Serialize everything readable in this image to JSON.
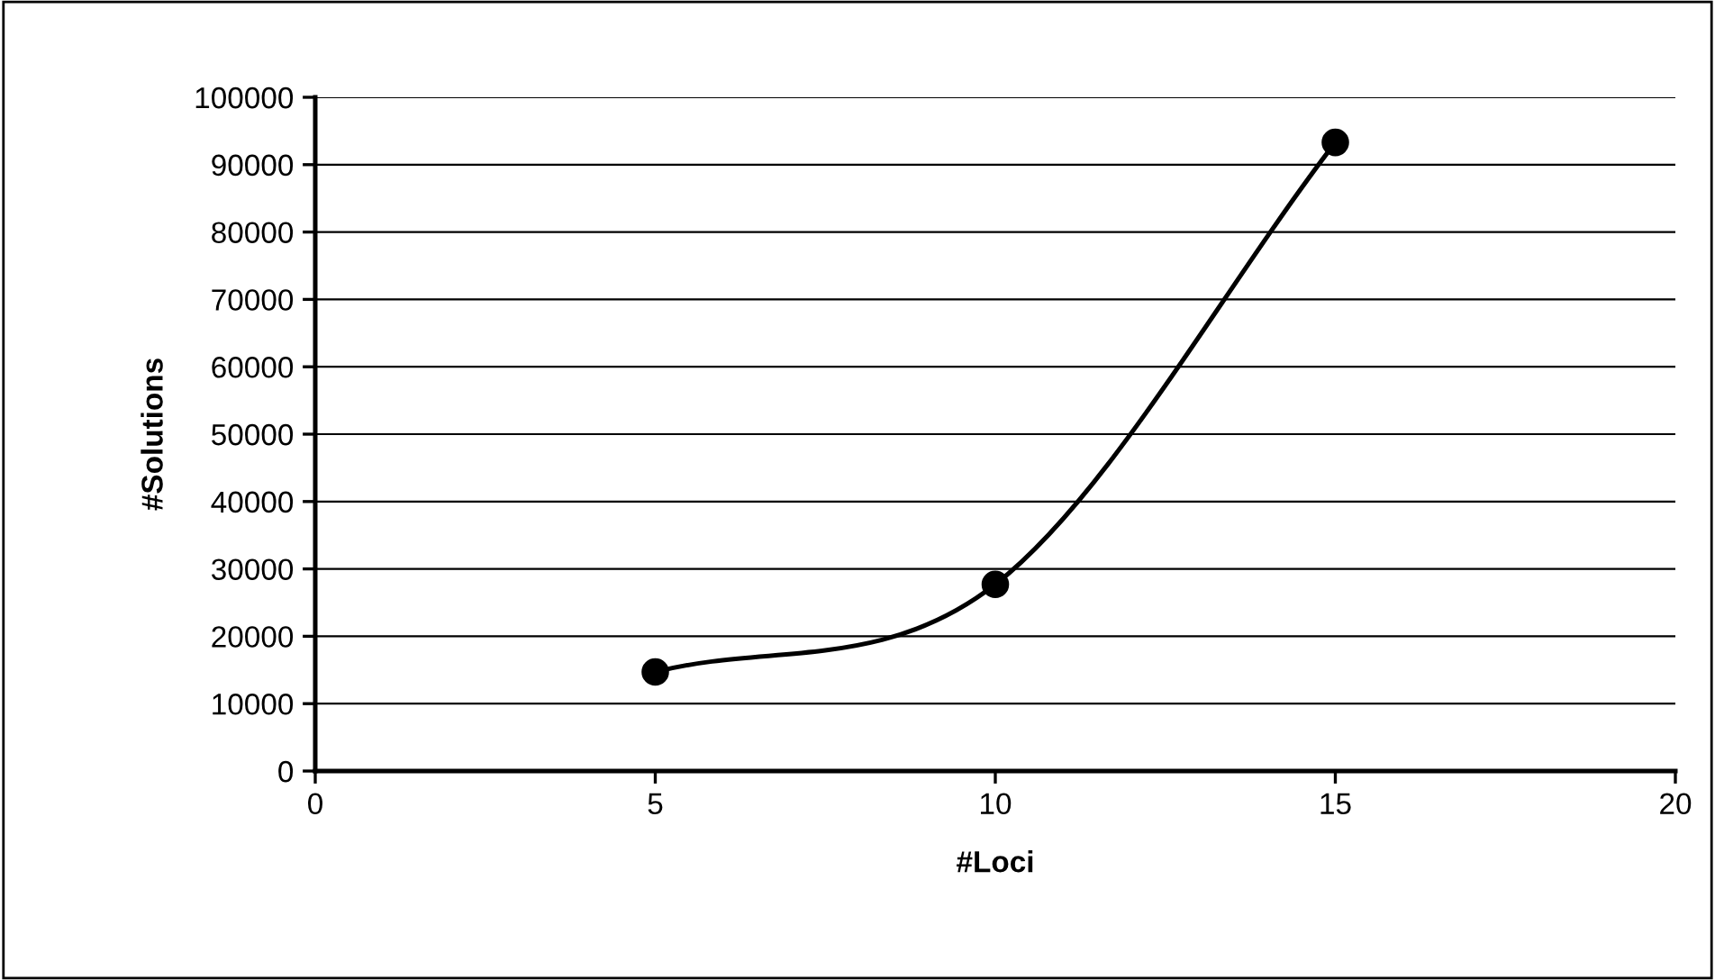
{
  "chart_data": {
    "type": "line",
    "xlabel": "#Loci",
    "ylabel": "#Solutions",
    "x": [
      5,
      10,
      15
    ],
    "series": [
      {
        "color": "#000000",
        "values": [
          14700,
          27700,
          93300
        ]
      }
    ],
    "xlim": [
      0,
      20
    ],
    "xticks": [
      0,
      5,
      10,
      15,
      20
    ],
    "ylim": [
      0,
      100000
    ],
    "yticks": [
      0,
      10000,
      20000,
      30000,
      40000,
      50000,
      60000,
      70000,
      80000,
      90000,
      100000
    ],
    "grid": "y",
    "legend": false,
    "marker": "circle",
    "line_style": "solid"
  }
}
